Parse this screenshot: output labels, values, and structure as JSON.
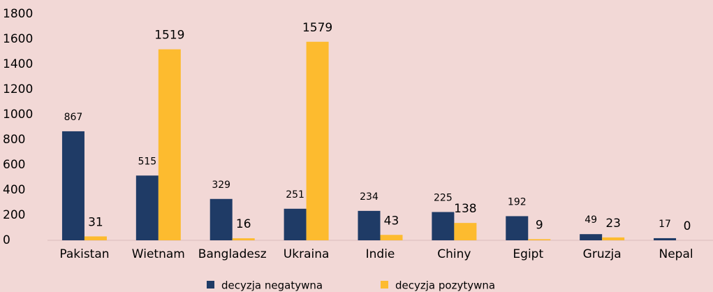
{
  "chart_data": {
    "type": "bar",
    "categories": [
      "Pakistan",
      "Wietnam",
      "Bangladesz",
      "Ukraina",
      "Indie",
      "Chiny",
      "Egipt",
      "Gruzja",
      "Nepal"
    ],
    "series": [
      {
        "name": "decyzja negatywna",
        "color": "#1f3b66",
        "values": [
          867,
          515,
          329,
          251,
          234,
          225,
          192,
          49,
          17
        ]
      },
      {
        "name": "decyzja pozytywna",
        "color": "#fdbb2f",
        "values": [
          31,
          1519,
          16,
          1579,
          43,
          138,
          9,
          23,
          0
        ]
      }
    ],
    "ylim": [
      0,
      1800
    ],
    "yticks": [
      0,
      200,
      400,
      600,
      800,
      1000,
      1200,
      1400,
      1600,
      1800
    ],
    "grid": false,
    "legend": "bottom"
  }
}
